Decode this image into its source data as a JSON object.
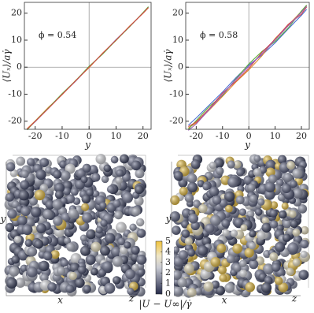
{
  "chart_data": [
    {
      "type": "line",
      "annotation": "ϕ = 0.54",
      "xlabel": "y",
      "ylabel": "⟨Uₓ⟩/aγ̇",
      "x": [
        -23,
        -20,
        -15,
        -10,
        -5,
        0,
        5,
        10,
        15,
        20,
        22
      ],
      "series": [
        {
          "color": "#4a6fd4",
          "values": [
            -23,
            -20.2,
            -15.1,
            -10,
            -5.2,
            0.1,
            5,
            10.2,
            15,
            20.1,
            22.2
          ]
        },
        {
          "color": "#e0892b",
          "values": [
            -22.8,
            -19.9,
            -14.8,
            -10.2,
            -4.9,
            -0.2,
            5.2,
            9.9,
            15.2,
            19.9,
            22
          ]
        },
        {
          "color": "#5cae3a",
          "values": [
            -23.2,
            -20,
            -15,
            -9.8,
            -5,
            0.3,
            4.8,
            10,
            14.9,
            20.2,
            22.4
          ]
        },
        {
          "color": "#d04a4a",
          "values": [
            -22.9,
            -20.1,
            -15.2,
            -10.1,
            -5.1,
            0,
            5.1,
            10.1,
            15.1,
            20,
            22.1
          ]
        }
      ],
      "xlim": [
        -24,
        23
      ],
      "ylim": [
        -23,
        24
      ],
      "xticks": [
        -20,
        -10,
        0,
        10,
        20
      ],
      "yticks": [
        -20,
        -10,
        0,
        10,
        20
      ]
    },
    {
      "type": "line",
      "annotation": "ϕ = 0.58",
      "xlabel": "y",
      "ylabel": "⟨Uₓ⟩/aγ̇",
      "x": [
        -23,
        -20,
        -15,
        -10,
        -5,
        0,
        5,
        10,
        15,
        20,
        22
      ],
      "series": [
        {
          "color": "#4a6fd4",
          "values": [
            -21.5,
            -18.8,
            -14,
            -9.2,
            -4,
            0.8,
            4.5,
            9,
            14.2,
            19.2,
            21.4
          ]
        },
        {
          "color": "#e0892b",
          "values": [
            -22.5,
            -20.6,
            -15.8,
            -10.8,
            -5.6,
            -1,
            4.2,
            10.6,
            15.6,
            20.6,
            22.8
          ]
        },
        {
          "color": "#5cae3a",
          "values": [
            -23,
            -19.8,
            -14.5,
            -10.5,
            -4.4,
            1.2,
            5.8,
            9.5,
            14.5,
            20.8,
            23
          ]
        },
        {
          "color": "#d04a4a",
          "values": [
            -22,
            -20.3,
            -15.3,
            -9.6,
            -5.3,
            -0.5,
            5.5,
            10.3,
            15.9,
            19.6,
            22.3
          ]
        },
        {
          "color": "#9b59b6",
          "values": [
            -23.4,
            -21,
            -15.6,
            -10.2,
            -4.7,
            0.3,
            4.9,
            10.1,
            15.3,
            20.3,
            22.6
          ]
        }
      ],
      "xlim": [
        -24,
        23
      ],
      "ylim": [
        -23,
        24
      ],
      "xticks": [
        -20,
        -10,
        0,
        10,
        20
      ],
      "yticks": [
        -20,
        -10,
        0,
        10,
        20
      ]
    }
  ],
  "renderings": [
    {
      "axis_labels": {
        "x": "x",
        "y": "y",
        "z": "z"
      }
    },
    {
      "axis_labels": {
        "x": "x",
        "y": "y",
        "z": "z"
      }
    }
  ],
  "colorbar": {
    "label": "|U − U∞|/γ̇",
    "lim": [
      0,
      5
    ],
    "ticks": [
      0,
      1,
      2,
      3,
      4,
      5
    ]
  }
}
